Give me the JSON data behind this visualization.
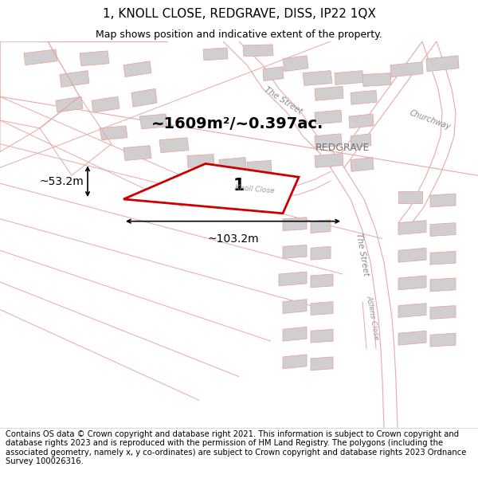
{
  "title": "1, KNOLL CLOSE, REDGRAVE, DISS, IP22 1QX",
  "subtitle": "Map shows position and indicative extent of the property.",
  "footer": "Contains OS data © Crown copyright and database right 2021. This information is subject to Crown copyright and database rights 2023 and is reproduced with the permission of HM Land Registry. The polygons (including the associated geometry, namely x, y co-ordinates) are subject to Crown copyright and database rights 2023 Ordnance Survey 100026316.",
  "area_label": "~1609m²/~0.397ac.",
  "width_label": "~103.2m",
  "height_label": "~53.2m",
  "plot_number": "1",
  "bg_color": "#ffffff",
  "road_color": "#e8a8a8",
  "building_color": "#d0cece",
  "highlight_color": "#cc0000",
  "title_fontsize": 11,
  "subtitle_fontsize": 9,
  "footer_fontsize": 7.2,
  "figsize": [
    6.0,
    6.25
  ],
  "dpi": 100,
  "map_xlim": [
    0,
    600
  ],
  "map_ylim": [
    0,
    490
  ],
  "redgrave_label": "REDGRAVE",
  "churchway_label": "Churchway",
  "the_street_label1": "The Street",
  "the_street_label2": "The Street",
  "knoll_close_label": "Knoll Close",
  "aslens_close_label": "Aslens Close"
}
